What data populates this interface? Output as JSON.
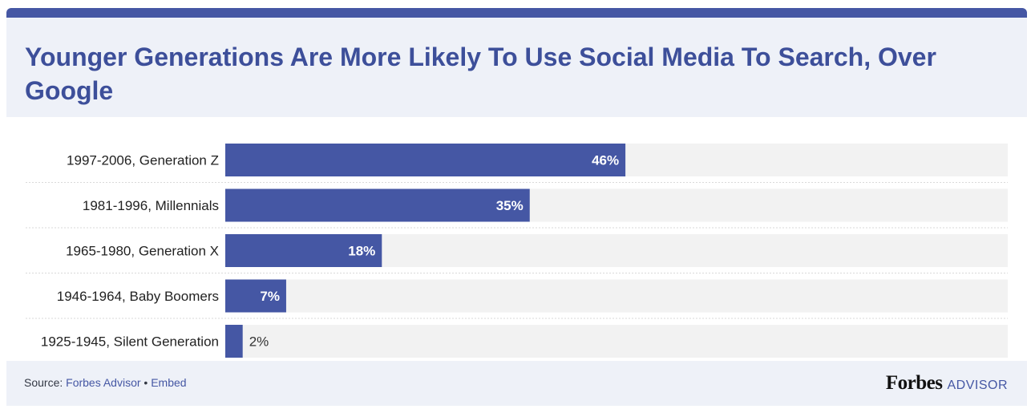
{
  "colors": {
    "accent": "#4557a4",
    "title": "#3d4f9a",
    "track": "#f2f2f2",
    "header_bg": "#eef1f8",
    "label_text": "#222222"
  },
  "footer": {
    "source_prefix": "Source: ",
    "source_link": "Forbes Advisor",
    "separator": " • ",
    "embed_link": "Embed",
    "logo_forbes": "Forbes",
    "logo_advisor": "ADVISOR"
  },
  "chart_data": {
    "type": "bar",
    "orientation": "horizontal",
    "title": "Younger Generations Are More Likely To Use Social Media To Search, Over Google",
    "categories": [
      "1997-2006, Generation Z",
      "1981-1996, Millennials",
      "1965-1980, Generation X",
      "1946-1964, Baby Boomers",
      "1925-1945, Silent Generation"
    ],
    "values": [
      46,
      35,
      18,
      7,
      2
    ],
    "value_labels": [
      "46%",
      "35%",
      "18%",
      "7%",
      "2%"
    ],
    "unit": "%",
    "xlim": [
      0,
      90
    ],
    "grid": false,
    "legend": "none"
  }
}
